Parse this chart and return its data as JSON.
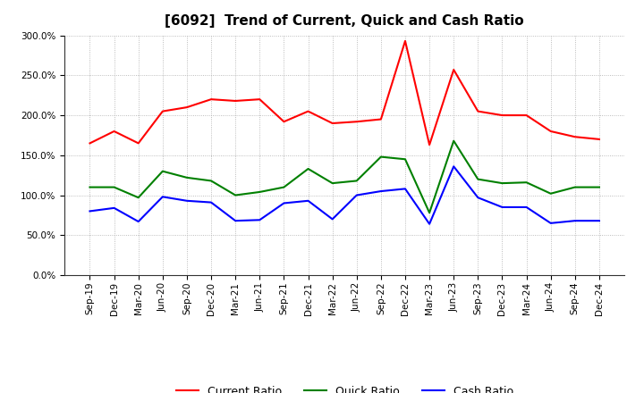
{
  "title": "[6092]  Trend of Current, Quick and Cash Ratio",
  "labels": [
    "Sep-19",
    "Dec-19",
    "Mar-20",
    "Jun-20",
    "Sep-20",
    "Dec-20",
    "Mar-21",
    "Jun-21",
    "Sep-21",
    "Dec-21",
    "Mar-22",
    "Jun-22",
    "Sep-22",
    "Dec-22",
    "Mar-23",
    "Jun-23",
    "Sep-23",
    "Dec-23",
    "Mar-24",
    "Jun-24",
    "Sep-24",
    "Dec-24"
  ],
  "current_ratio": [
    165,
    180,
    165,
    205,
    210,
    220,
    218,
    220,
    192,
    205,
    190,
    192,
    195,
    293,
    163,
    257,
    205,
    200,
    200,
    180,
    173,
    170
  ],
  "quick_ratio": [
    110,
    110,
    97,
    130,
    122,
    118,
    100,
    104,
    110,
    133,
    115,
    118,
    148,
    145,
    78,
    168,
    120,
    115,
    116,
    102,
    110,
    110
  ],
  "cash_ratio": [
    80,
    84,
    67,
    98,
    93,
    91,
    68,
    69,
    90,
    93,
    70,
    100,
    105,
    108,
    64,
    136,
    97,
    85,
    85,
    65,
    68,
    68
  ],
  "current_color": "#ff0000",
  "quick_color": "#008000",
  "cash_color": "#0000ff",
  "ylim": [
    0,
    300
  ],
  "yticks": [
    0,
    50,
    100,
    150,
    200,
    250,
    300
  ],
  "background_color": "#ffffff",
  "grid_color": "#aaaaaa",
  "title_fontsize": 11,
  "tick_fontsize": 7.5,
  "legend_fontsize": 9
}
